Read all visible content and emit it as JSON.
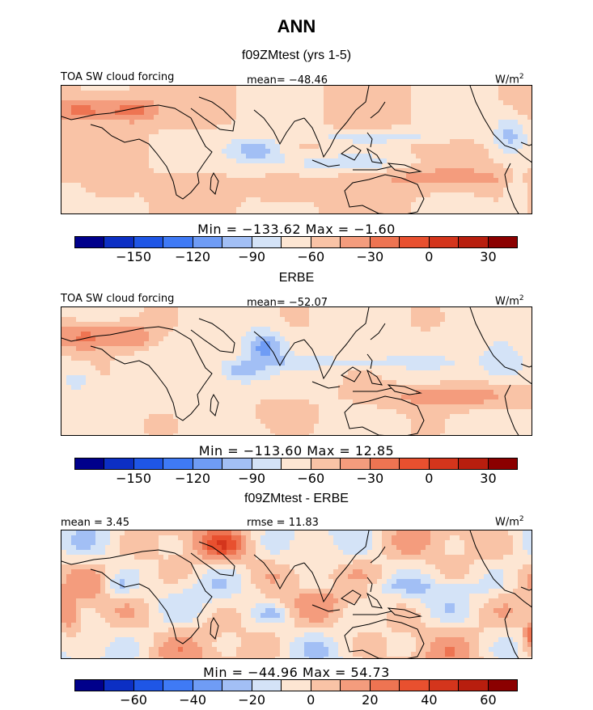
{
  "page_title": "ANN",
  "chart_data": [
    {
      "type": "heatmap",
      "title": "f09ZMtest (yrs 1-5)",
      "variable_label": "TOA SW cloud forcing",
      "units": "W/m",
      "units_exp": "2",
      "mean_text": "mean= −48.46",
      "minmax_text": "Min = −133.62 Max =  −1.60",
      "colorbar_ticks": [
        "−150",
        "−120",
        "−90",
        "−60",
        "−30",
        "0",
        "30"
      ],
      "colorbar_levels": [
        -165,
        -150,
        -135,
        -120,
        -105,
        -90,
        -75,
        -60,
        -45,
        -30,
        -15,
        0,
        15,
        30,
        45,
        60
      ],
      "min": -133.62,
      "max": -1.6,
      "mean": -48.46,
      "field": "model"
    },
    {
      "type": "heatmap",
      "title": "ERBE",
      "variable_label": "TOA SW cloud forcing",
      "units": "W/m",
      "units_exp": "2",
      "mean_text": "mean= −52.07",
      "minmax_text": "Min = −113.60 Max =  12.85",
      "colorbar_ticks": [
        "−150",
        "−120",
        "−90",
        "−60",
        "−30",
        "0",
        "30"
      ],
      "colorbar_levels": [
        -165,
        -150,
        -135,
        -120,
        -105,
        -90,
        -75,
        -60,
        -45,
        -30,
        -15,
        0,
        15,
        30,
        45,
        60
      ],
      "min": -113.6,
      "max": 12.85,
      "mean": -52.07,
      "field": "obs"
    },
    {
      "type": "heatmap",
      "title": "f09ZMtest - ERBE",
      "variable_label": "",
      "units": "W/m",
      "units_exp": "2",
      "mean_text": "mean =    3.45",
      "rmse_text": "rmse =   11.83",
      "minmax_text": "Min = −44.96 Max =  54.73",
      "colorbar_ticks": [
        "−60",
        "−40",
        "−20",
        "0",
        "20",
        "40",
        "60"
      ],
      "colorbar_levels": [
        -80,
        -70,
        -60,
        -50,
        -40,
        -30,
        -20,
        -10,
        0,
        10,
        20,
        30,
        40,
        50,
        60,
        70,
        80
      ],
      "min": -44.96,
      "max": 54.73,
      "mean": 3.45,
      "rmse": 11.83,
      "field": "diff"
    }
  ],
  "colorbar_colors": [
    "#00008b",
    "#0c2fc4",
    "#1f56e6",
    "#3f7af5",
    "#6f9cf5",
    "#a2bff5",
    "#d4e3f7",
    "#fde6d3",
    "#f9c3a6",
    "#f49c7d",
    "#ee7452",
    "#e8502f",
    "#d4351c",
    "#b81e0e",
    "#8b0000"
  ]
}
